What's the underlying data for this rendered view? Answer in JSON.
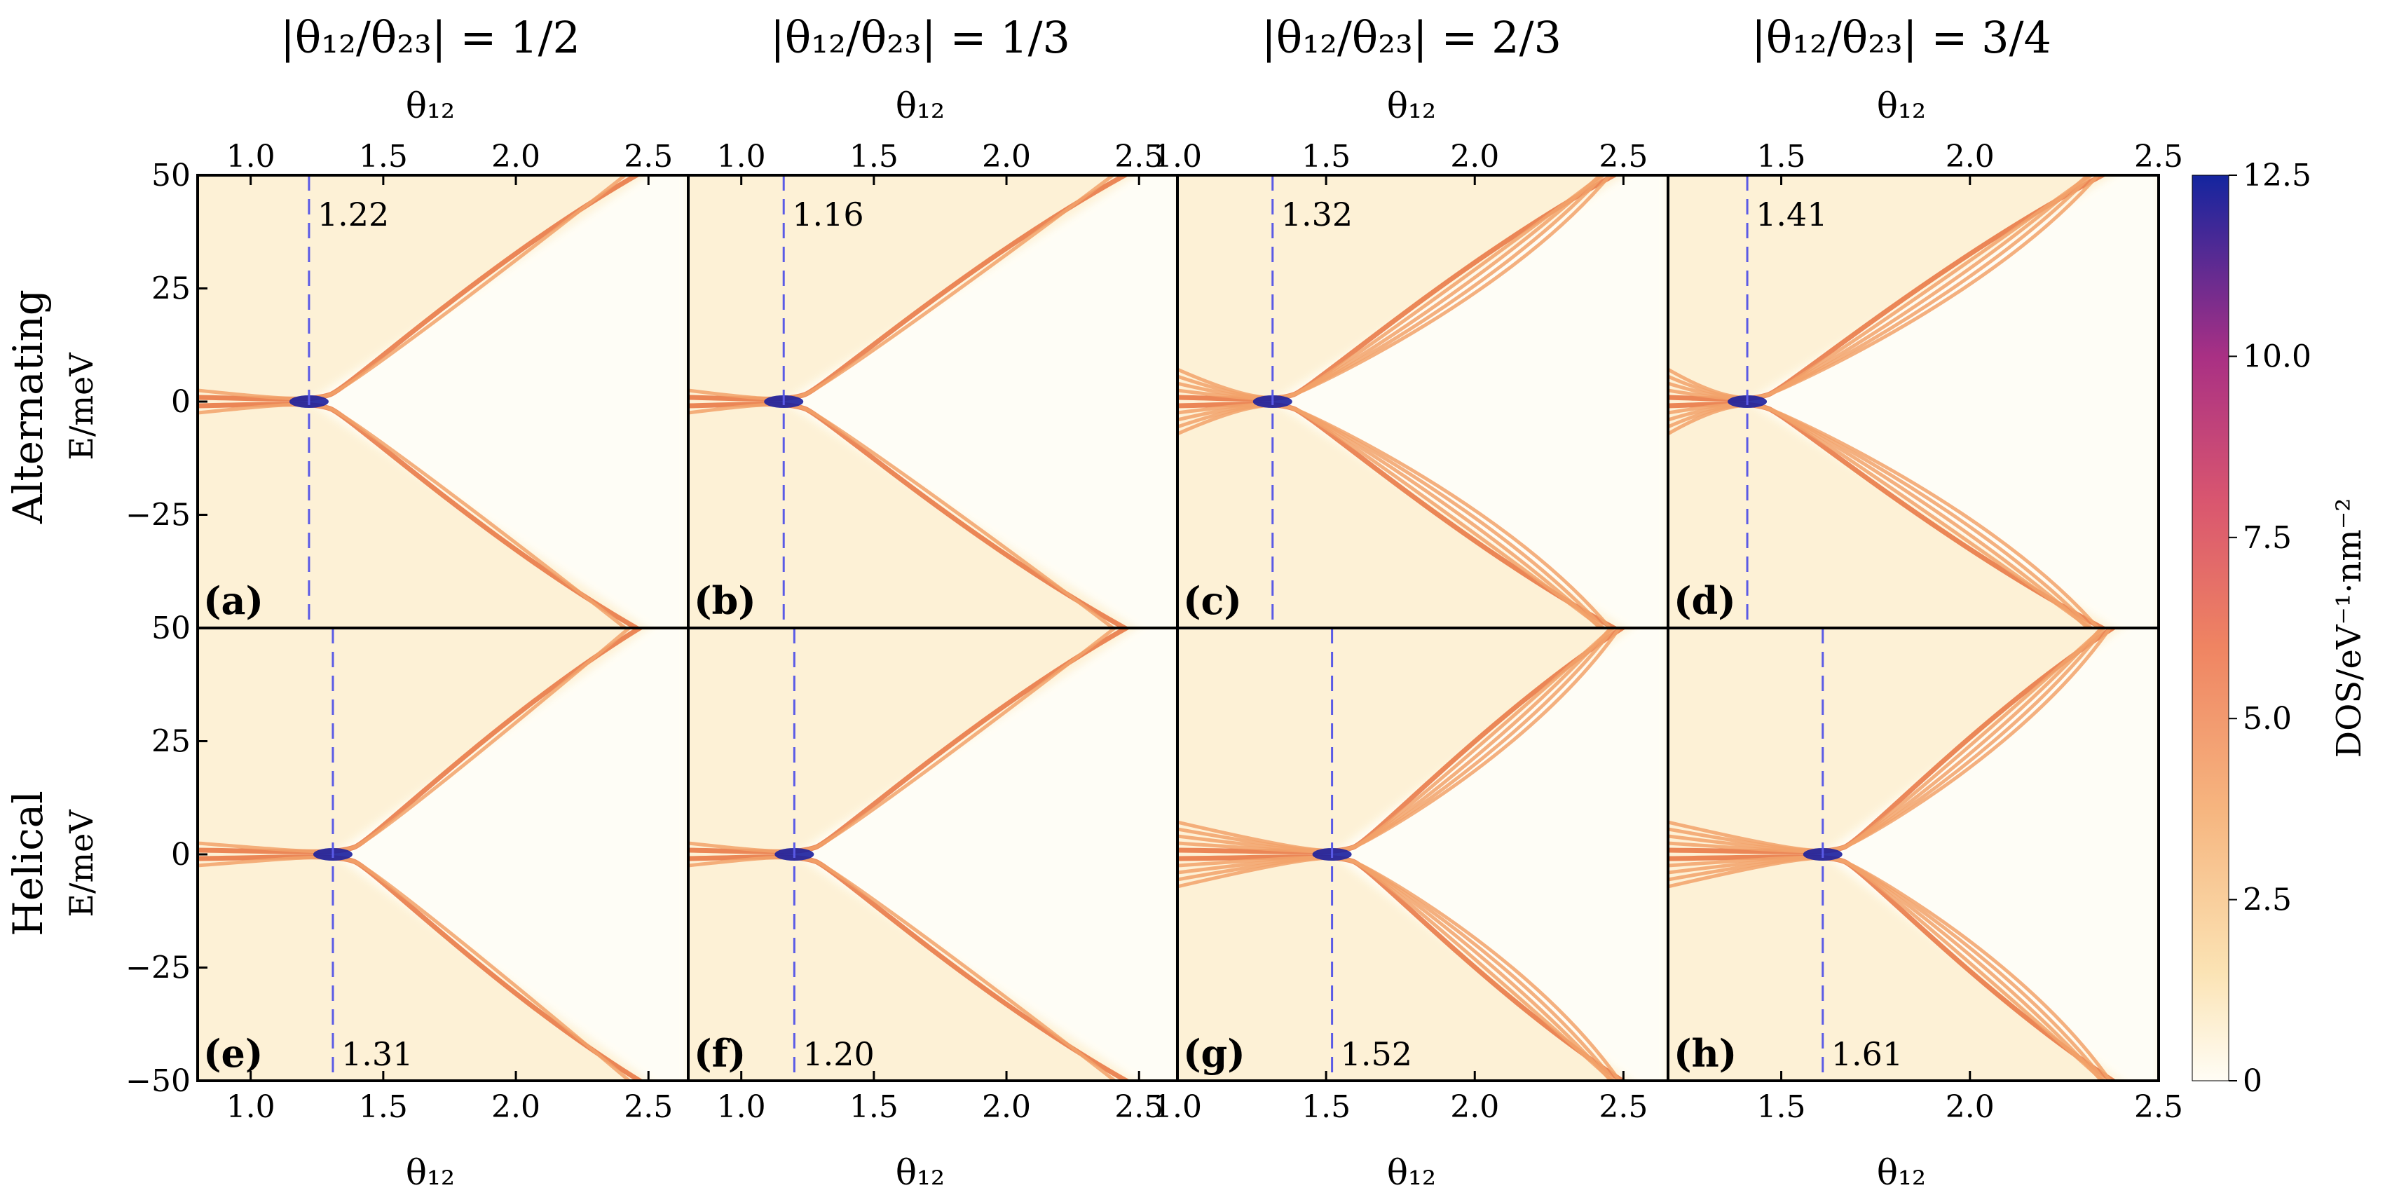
{
  "figure": {
    "column_titles": [
      "|θ₁₂/θ₂₃| = 1/2",
      "|θ₁₂/θ₂₃| = 1/3",
      "|θ₁₂/θ₂₃| = 2/3",
      "|θ₁₂/θ₂₃| = 3/4"
    ],
    "row_titles": [
      "Alternating",
      "Helical"
    ],
    "x_axis_label": "θ₁₂",
    "y_axis_label": "E/meV",
    "colorbar_label": "DOS/eV⁻¹·nm⁻²",
    "colors": {
      "low": "#fffbf0",
      "mid": "#f28a5a",
      "high": "#1b1f9e",
      "marker": "#5a5ae6",
      "marker_text": "#1a1ad0"
    }
  },
  "chart_data": {
    "type": "heatmap",
    "colorbar": {
      "ticks": [
        "0",
        "2.5",
        "5.0",
        "7.5",
        "10.0",
        "12.5"
      ],
      "range": [
        0,
        12.5
      ]
    },
    "y_ticks": [
      "50",
      "25",
      "0",
      "−25",
      "50",
      "25",
      "0",
      "−25",
      "−50"
    ],
    "panels": [
      {
        "label": "(a)",
        "row": "Alternating",
        "column": 0,
        "xlim": [
          0.8,
          2.65
        ],
        "ylim": [
          -50,
          50
        ],
        "x_ticks": [
          "1.0",
          "1.5",
          "2.0",
          "2.5"
        ],
        "x_tick_values": [
          1.0,
          1.5,
          2.0,
          2.5
        ],
        "marker": 1.22,
        "marker_label": "1.22"
      },
      {
        "label": "(b)",
        "row": "Alternating",
        "column": 1,
        "xlim": [
          0.8,
          2.65
        ],
        "ylim": [
          -50,
          50
        ],
        "x_ticks": [
          "1.0",
          "1.5",
          "2.0",
          "2.5"
        ],
        "x_tick_values": [
          1.0,
          1.5,
          2.0,
          2.5
        ],
        "marker": 1.16,
        "marker_label": "1.16"
      },
      {
        "label": "(c)",
        "row": "Alternating",
        "column": 2,
        "xlim": [
          1.0,
          2.65
        ],
        "ylim": [
          -50,
          50
        ],
        "x_ticks": [
          "1.0",
          "1.5",
          "2.0",
          "2.5"
        ],
        "x_tick_values": [
          1.0,
          1.5,
          2.0,
          2.5
        ],
        "marker": 1.32,
        "marker_label": "1.32"
      },
      {
        "label": "(d)",
        "row": "Alternating",
        "column": 3,
        "xlim": [
          1.2,
          2.5
        ],
        "ylim": [
          -50,
          50
        ],
        "x_ticks": [
          "1.5",
          "2.0",
          "2.5"
        ],
        "x_tick_values": [
          1.5,
          2.0,
          2.5
        ],
        "marker": 1.41,
        "marker_label": "1.41"
      },
      {
        "label": "(e)",
        "row": "Helical",
        "column": 0,
        "xlim": [
          0.8,
          2.65
        ],
        "ylim": [
          -50,
          50
        ],
        "x_ticks": [
          "1.0",
          "1.5",
          "2.0",
          "2.5"
        ],
        "x_tick_values": [
          1.0,
          1.5,
          2.0,
          2.5
        ],
        "marker": 1.31,
        "marker_label": "1.31"
      },
      {
        "label": "(f)",
        "row": "Helical",
        "column": 1,
        "xlim": [
          0.8,
          2.65
        ],
        "ylim": [
          -50,
          50
        ],
        "x_ticks": [
          "1.0",
          "1.5",
          "2.0",
          "2.5"
        ],
        "x_tick_values": [
          1.0,
          1.5,
          2.0,
          2.5
        ],
        "marker": 1.2,
        "marker_label": "1.20"
      },
      {
        "label": "(g)",
        "row": "Helical",
        "column": 2,
        "xlim": [
          1.0,
          2.65
        ],
        "ylim": [
          -50,
          50
        ],
        "x_ticks": [
          "1.0",
          "1.5",
          "2.0",
          "2.5"
        ],
        "x_tick_values": [
          1.0,
          1.5,
          2.0,
          2.5
        ],
        "marker": 1.52,
        "marker_label": "1.52"
      },
      {
        "label": "(h)",
        "row": "Helical",
        "column": 3,
        "xlim": [
          1.2,
          2.5
        ],
        "ylim": [
          -50,
          50
        ],
        "x_ticks": [
          "1.5",
          "2.0",
          "2.5"
        ],
        "x_tick_values": [
          1.5,
          2.0,
          2.5
        ],
        "marker": 1.61,
        "marker_label": "1.61"
      }
    ]
  }
}
